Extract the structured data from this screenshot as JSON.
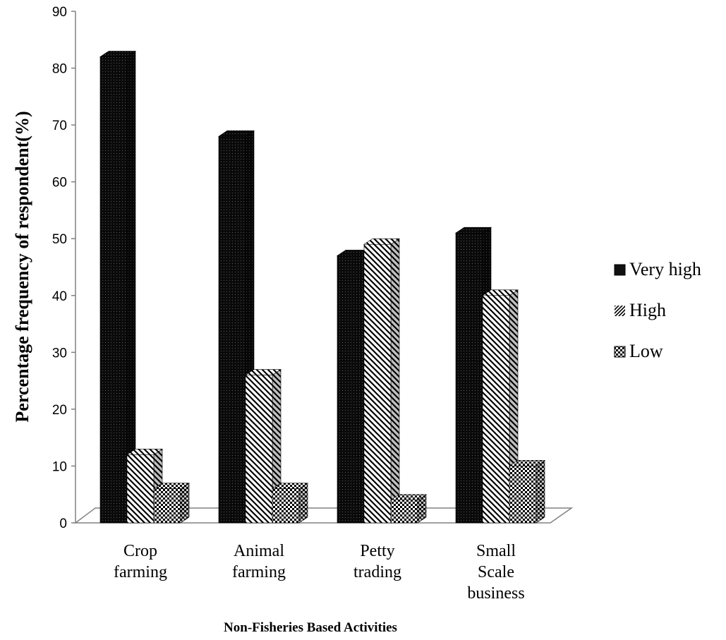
{
  "chart_data": {
    "type": "bar",
    "categories": [
      "Crop farming",
      "Animal farming",
      "Petty trading",
      "Small Scale business"
    ],
    "category_lines": [
      [
        "Crop",
        "farming"
      ],
      [
        "Animal",
        "farming"
      ],
      [
        "Petty",
        "trading"
      ],
      [
        "Small",
        "Scale",
        "business"
      ]
    ],
    "series": [
      {
        "name": "Very high",
        "values": [
          82,
          68,
          47,
          51
        ],
        "pattern": "dots-dark"
      },
      {
        "name": "High",
        "values": [
          12,
          26,
          49,
          40
        ],
        "pattern": "diagonal"
      },
      {
        "name": "Low",
        "values": [
          6,
          6,
          4,
          10
        ],
        "pattern": "checker"
      }
    ],
    "ylim": [
      0,
      90
    ],
    "yticks": [
      0,
      10,
      20,
      30,
      40,
      50,
      60,
      70,
      80,
      90
    ],
    "ylabel": "Percentage frequency of respondent(%)",
    "xlabel": "Non-Fisheries Based Activities",
    "grid": false,
    "legend_position": "right",
    "style": "3d-clustered-column"
  }
}
